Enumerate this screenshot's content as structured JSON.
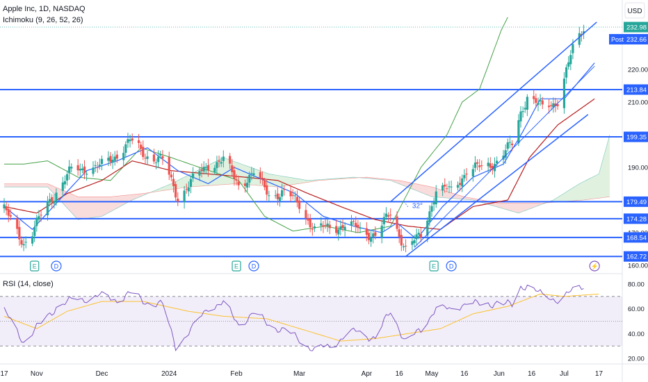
{
  "header": {
    "symbol_line": "Apple Inc, 1D, NASDAQ",
    "indicator_line": "Ichimoku (9, 26, 52, 26)",
    "rsi_line": "RSI (14, close)",
    "currency": "USD"
  },
  "colors": {
    "up": "#26a69a",
    "down": "#ef5350",
    "blue_line": "#2962ff",
    "tenkan": "#2962ff",
    "kijun": "#b71c1c",
    "lagging": "#43a047",
    "cloud_up": "#a5d6a7",
    "cloud_down": "#ef9a9a",
    "rsi": "#7e57c2",
    "rsi_ma": "#fbc02d",
    "badge_bg": "#2962ff"
  },
  "chart_data": [
    {
      "type": "candlestick",
      "title": "Apple Inc, 1D, NASDAQ",
      "ylabel": "USD",
      "ylim": [
        160,
        236
      ],
      "xlim": [
        "2023-10-17",
        "2024-07-22"
      ],
      "y_ticks": [
        160,
        170,
        180,
        190,
        200,
        210,
        220
      ],
      "y_tick_labels": [
        "160.00",
        "170.00",
        "180.00",
        "190.00",
        "200.00",
        "210.00",
        "220.00"
      ],
      "x_ticks": [
        "2023-10-17",
        "2023-11-01",
        "2023-12-01",
        "2024-01-01",
        "2024-02-01",
        "2024-03-01",
        "2024-04-01",
        "2024-04-16",
        "2024-05-01",
        "2024-05-16",
        "2024-06-01",
        "2024-06-16",
        "2024-07-01",
        "2024-07-17"
      ],
      "x_tick_labels": [
        "17",
        "Nov",
        "Dec",
        "2024",
        "Feb",
        "Mar",
        "Apr",
        "16",
        "May",
        "16",
        "Jun",
        "16",
        "Jul",
        "17"
      ],
      "horizontal_levels": [
        {
          "value": 213.84,
          "label": "213.84"
        },
        {
          "value": 199.35,
          "label": "199.35"
        },
        {
          "value": 179.49,
          "label": "179.49"
        },
        {
          "value": 174.28,
          "label": "174.28"
        },
        {
          "value": 168.54,
          "label": "168.54"
        },
        {
          "value": 162.72,
          "label": "162.72"
        }
      ],
      "price_badges": [
        {
          "label": "232.98",
          "value": 232.98
        },
        {
          "label": "Post",
          "value": 232.66,
          "price": "232.66"
        }
      ],
      "trend_channel": {
        "upper": [
          [
            "2024-04-12",
            179.49
          ],
          [
            "2024-07-16",
            234.5
          ]
        ],
        "middle": [
          [
            "2024-04-23",
            165.5
          ],
          [
            "2024-07-15",
            221.0
          ]
        ],
        "lower": [
          [
            "2024-04-19",
            162.72
          ],
          [
            "2024-07-12",
            206.2
          ]
        ]
      },
      "angle_annotation": "32°",
      "event_markers": [
        {
          "date": "2023-10-31",
          "label": "E"
        },
        {
          "date": "2023-11-10",
          "label": "D"
        },
        {
          "date": "2024-02-01",
          "label": "E"
        },
        {
          "date": "2024-02-09",
          "label": "D"
        },
        {
          "date": "2024-05-02",
          "label": "E"
        },
        {
          "date": "2024-05-10",
          "label": "D"
        },
        {
          "date": "2024-07-15",
          "label": "⚡"
        }
      ],
      "series": [
        {
          "name": "Price",
          "anchors": [
            [
              "2023-10-17",
              177
            ],
            [
              "2023-10-26",
              167
            ],
            [
              "2023-10-30",
              170
            ],
            [
              "2023-11-06",
              179
            ],
            [
              "2023-11-17",
              189
            ],
            [
              "2023-11-24",
              190
            ],
            [
              "2023-11-30",
              190
            ],
            [
              "2023-12-06",
              193
            ],
            [
              "2023-12-14",
              198
            ],
            [
              "2023-12-21",
              194
            ],
            [
              "2023-12-29",
              192
            ],
            [
              "2024-01-05",
              181
            ],
            [
              "2024-01-12",
              186
            ],
            [
              "2024-01-19",
              191
            ],
            [
              "2024-01-26",
              192
            ],
            [
              "2024-02-02",
              185
            ],
            [
              "2024-02-09",
              188
            ],
            [
              "2024-02-16",
              182
            ],
            [
              "2024-02-23",
              182
            ],
            [
              "2024-03-01",
              179
            ],
            [
              "2024-03-08",
              170.5
            ],
            [
              "2024-03-15",
              172
            ],
            [
              "2024-03-22",
              172
            ],
            [
              "2024-03-28",
              171.5
            ],
            [
              "2024-04-05",
              169
            ],
            [
              "2024-04-12",
              176
            ],
            [
              "2024-04-19",
              165
            ],
            [
              "2024-04-26",
              169
            ],
            [
              "2024-05-03",
              183
            ],
            [
              "2024-05-10",
              183
            ],
            [
              "2024-05-17",
              189
            ],
            [
              "2024-05-24",
              190
            ],
            [
              "2024-05-31",
              192
            ],
            [
              "2024-06-07",
              197
            ],
            [
              "2024-06-11",
              207
            ],
            [
              "2024-06-14",
              212
            ],
            [
              "2024-06-21",
              208
            ],
            [
              "2024-06-28",
              210.6
            ],
            [
              "2024-07-05",
              226
            ],
            [
              "2024-07-10",
              232.98
            ]
          ]
        },
        {
          "name": "Tenkan",
          "anchors": [
            [
              "2023-10-17",
              178
            ],
            [
              "2023-10-30",
              171
            ],
            [
              "2023-11-10",
              179
            ],
            [
              "2023-11-24",
              189
            ],
            [
              "2023-12-08",
              192
            ],
            [
              "2023-12-22",
              196
            ],
            [
              "2024-01-05",
              189
            ],
            [
              "2024-01-19",
              185
            ],
            [
              "2024-01-31",
              190
            ],
            [
              "2024-02-14",
              186
            ],
            [
              "2024-02-28",
              182
            ],
            [
              "2024-03-12",
              175
            ],
            [
              "2024-03-26",
              172
            ],
            [
              "2024-04-08",
              170
            ],
            [
              "2024-04-15",
              173
            ],
            [
              "2024-04-24",
              168
            ],
            [
              "2024-05-06",
              178
            ],
            [
              "2024-05-20",
              187
            ],
            [
              "2024-06-03",
              191
            ],
            [
              "2024-06-12",
              201
            ],
            [
              "2024-06-20",
              211
            ],
            [
              "2024-07-01",
              211
            ],
            [
              "2024-07-15",
              222
            ]
          ]
        },
        {
          "name": "Kijun",
          "anchors": [
            [
              "2023-10-17",
              178
            ],
            [
              "2023-11-01",
              176
            ],
            [
              "2023-11-15",
              182
            ],
            [
              "2023-12-01",
              186
            ],
            [
              "2023-12-15",
              192
            ],
            [
              "2024-01-02",
              189
            ],
            [
              "2024-01-19",
              188
            ],
            [
              "2024-02-05",
              187
            ],
            [
              "2024-02-20",
              186
            ],
            [
              "2024-03-05",
              182
            ],
            [
              "2024-03-20",
              178
            ],
            [
              "2024-04-05",
              174
            ],
            [
              "2024-04-20",
              172
            ],
            [
              "2024-05-05",
              171
            ],
            [
              "2024-05-20",
              178
            ],
            [
              "2024-06-05",
              180
            ],
            [
              "2024-06-15",
              193
            ],
            [
              "2024-06-28",
              203
            ],
            [
              "2024-07-15",
              211
            ]
          ]
        },
        {
          "name": "Lagging Span",
          "anchors": [
            [
              "2023-10-17",
              191
            ],
            [
              "2023-10-26",
              191
            ],
            [
              "2023-11-06",
              192
            ],
            [
              "2023-11-20",
              187
            ],
            [
              "2023-12-05",
              186
            ],
            [
              "2023-12-19",
              196
            ],
            [
              "2024-01-02",
              193
            ],
            [
              "2024-01-15",
              190
            ],
            [
              "2024-02-02",
              186
            ],
            [
              "2024-02-14",
              175
            ],
            [
              "2024-02-27",
              170.5
            ],
            [
              "2024-03-13",
              172
            ],
            [
              "2024-03-28",
              170
            ],
            [
              "2024-04-12",
              172
            ],
            [
              "2024-04-26",
              190
            ],
            [
              "2024-05-08",
              200
            ],
            [
              "2024-05-15",
              210
            ],
            [
              "2024-05-23",
              214
            ],
            [
              "2024-06-02",
              232
            ],
            [
              "2024-06-05",
              236
            ]
          ]
        },
        {
          "name": "Cloud Span A",
          "anchors": [
            [
              "2023-10-17",
              184
            ],
            [
              "2023-11-06",
              184
            ],
            [
              "2023-11-20",
              174
            ],
            [
              "2023-12-01",
              175
            ],
            [
              "2023-12-15",
              180
            ],
            [
              "2024-01-02",
              185
            ],
            [
              "2024-01-26",
              193
            ],
            [
              "2024-02-16",
              188
            ],
            [
              "2024-03-05",
              186
            ],
            [
              "2024-03-26",
              187
            ],
            [
              "2024-04-12",
              186
            ],
            [
              "2024-05-01",
              181
            ],
            [
              "2024-05-20",
              180
            ],
            [
              "2024-06-10",
              176
            ],
            [
              "2024-06-26",
              180
            ],
            [
              "2024-07-08",
              185
            ],
            [
              "2024-07-17",
              188
            ],
            [
              "2024-07-22",
              200
            ]
          ]
        },
        {
          "name": "Cloud Span B",
          "anchors": [
            [
              "2023-10-17",
              185
            ],
            [
              "2023-11-06",
              185
            ],
            [
              "2023-11-20",
              181
            ],
            [
              "2023-12-05",
              181
            ],
            [
              "2023-12-20",
              182
            ],
            [
              "2024-01-10",
              184
            ],
            [
              "2024-02-01",
              185
            ],
            [
              "2024-02-20",
              184
            ],
            [
              "2024-03-10",
              186
            ],
            [
              "2024-04-01",
              187
            ],
            [
              "2024-04-16",
              186
            ],
            [
              "2024-05-01",
              184
            ],
            [
              "2024-05-16",
              181
            ],
            [
              "2024-06-01",
              179
            ],
            [
              "2024-06-20",
              179
            ],
            [
              "2024-07-10",
              180
            ],
            [
              "2024-07-22",
              181
            ]
          ]
        }
      ]
    },
    {
      "type": "line",
      "title": "RSI (14, close)",
      "ylim": [
        17,
        85
      ],
      "y_ticks": [
        20,
        40,
        60,
        80
      ],
      "y_tick_labels": [
        "20.00",
        "40.00",
        "60.00",
        "80.00"
      ],
      "band": [
        30,
        70
      ],
      "mid": 50,
      "series": [
        {
          "name": "RSI",
          "anchors": [
            [
              "2023-10-17",
              58
            ],
            [
              "2023-10-26",
              34
            ],
            [
              "2023-11-02",
              46
            ],
            [
              "2023-11-10",
              62
            ],
            [
              "2023-11-20",
              68
            ],
            [
              "2023-11-30",
              70
            ],
            [
              "2023-12-08",
              68
            ],
            [
              "2023-12-14",
              72
            ],
            [
              "2023-12-21",
              66
            ],
            [
              "2023-12-29",
              63
            ],
            [
              "2024-01-04",
              30
            ],
            [
              "2024-01-12",
              44
            ],
            [
              "2024-01-19",
              62
            ],
            [
              "2024-01-26",
              64
            ],
            [
              "2024-02-02",
              48
            ],
            [
              "2024-02-09",
              56
            ],
            [
              "2024-02-16",
              48
            ],
            [
              "2024-03-01",
              36
            ],
            [
              "2024-03-08",
              26
            ],
            [
              "2024-03-15",
              30
            ],
            [
              "2024-03-22",
              38
            ],
            [
              "2024-03-28",
              42
            ],
            [
              "2024-04-05",
              36
            ],
            [
              "2024-04-12",
              58
            ],
            [
              "2024-04-19",
              34
            ],
            [
              "2024-04-26",
              42
            ],
            [
              "2024-05-03",
              62
            ],
            [
              "2024-05-10",
              58
            ],
            [
              "2024-05-17",
              66
            ],
            [
              "2024-05-24",
              62
            ],
            [
              "2024-05-31",
              66
            ],
            [
              "2024-06-07",
              62
            ],
            [
              "2024-06-11",
              78
            ],
            [
              "2024-06-14",
              80
            ],
            [
              "2024-06-21",
              70
            ],
            [
              "2024-06-28",
              68
            ],
            [
              "2024-07-03",
              72
            ],
            [
              "2024-07-10",
              79
            ]
          ]
        },
        {
          "name": "RSI MA",
          "anchors": [
            [
              "2023-10-17",
              54
            ],
            [
              "2023-11-01",
              44
            ],
            [
              "2023-11-15",
              58
            ],
            [
              "2023-12-01",
              66
            ],
            [
              "2023-12-20",
              66
            ],
            [
              "2024-01-10",
              58
            ],
            [
              "2024-01-26",
              54
            ],
            [
              "2024-02-15",
              52
            ],
            [
              "2024-03-05",
              42
            ],
            [
              "2024-03-20",
              34
            ],
            [
              "2024-04-05",
              36
            ],
            [
              "2024-04-20",
              40
            ],
            [
              "2024-05-05",
              44
            ],
            [
              "2024-05-20",
              56
            ],
            [
              "2024-06-05",
              62
            ],
            [
              "2024-06-20",
              72
            ],
            [
              "2024-07-01",
              70
            ],
            [
              "2024-07-17",
              72
            ]
          ]
        }
      ]
    }
  ]
}
